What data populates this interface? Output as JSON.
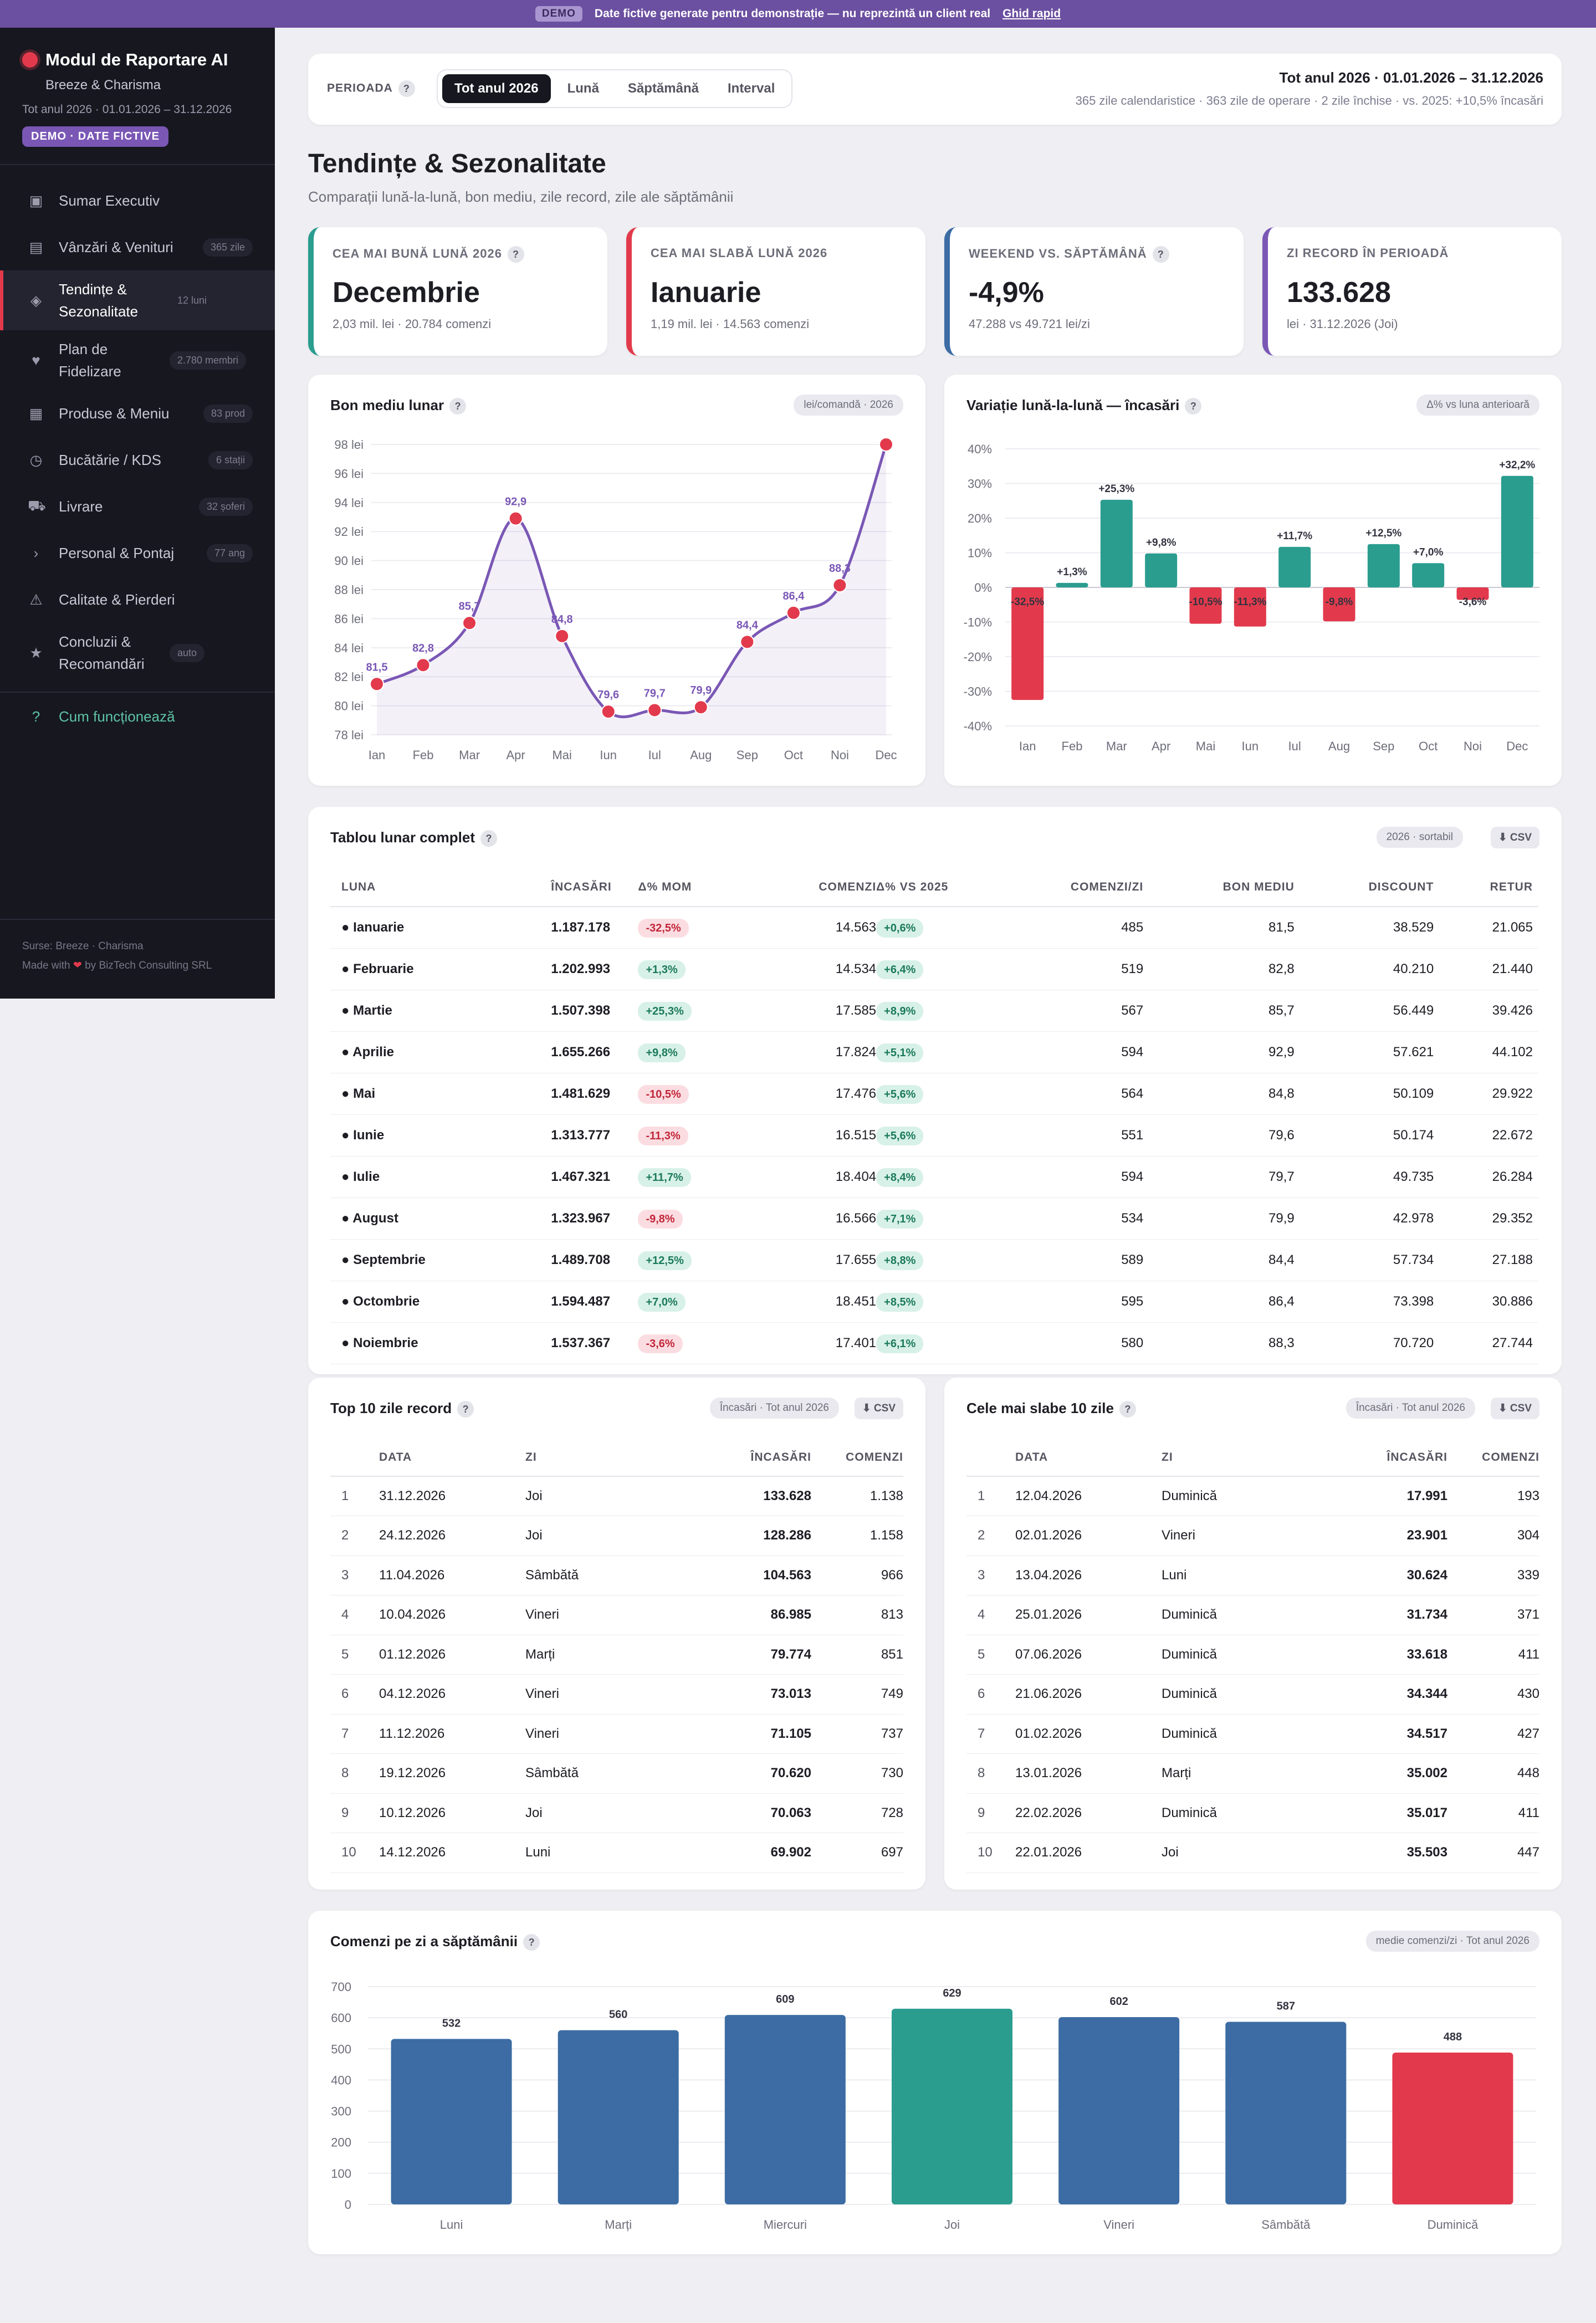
{
  "banner": {
    "tag": "DEMO",
    "text": "Date fictive generate pentru demonstrație — nu reprezintă un client real",
    "link": "Ghid rapid"
  },
  "sidebar": {
    "title": "Modul de Raportare AI",
    "client": "Breeze & Charisma",
    "period": "Tot anul 2026 · 01.01.2026 – 31.12.2026",
    "demo_badge": "DEMO · DATE FICTIVE",
    "items": [
      {
        "icon": "▣",
        "label": "Sumar Executiv",
        "badge": ""
      },
      {
        "icon": "▤",
        "label": "Vânzări & Venituri",
        "badge": "365 zile"
      },
      {
        "icon": "◈",
        "label": "Tendințe & Sezonalitate",
        "badge": "12 luni"
      },
      {
        "icon": "♥",
        "label": "Plan de Fidelizare",
        "badge": "2.780 membri"
      },
      {
        "icon": "▦",
        "label": "Produse & Meniu",
        "badge": "83 prod"
      },
      {
        "icon": "◷",
        "label": "Bucătărie / KDS",
        "badge": "6 stații"
      },
      {
        "icon": "⛟",
        "label": "Livrare",
        "badge": "32 șoferi"
      },
      {
        "icon": "›",
        "label": "Personal & Pontaj",
        "badge": "77 ang"
      },
      {
        "icon": "⚠",
        "label": "Calitate & Pierderi",
        "badge": ""
      },
      {
        "icon": "★",
        "label": "Concluzii & Recomandări",
        "badge": "auto"
      }
    ],
    "help": {
      "icon": "?",
      "label": "Cum funcționează"
    },
    "footer_sources": "Surse: Breeze · Charisma",
    "footer_made_pre": "Made with",
    "footer_made_post": "by BizTech Consulting SRL"
  },
  "period": {
    "label": "PERIOADA",
    "tabs": [
      "Tot anul 2026",
      "Lună",
      "Săptămână",
      "Interval"
    ],
    "summary": "Tot anul 2026 · 01.01.2026 – 31.12.2026",
    "detail": "365 zile calendaristice · 363 zile de operare · 2 zile închise · vs. 2025: +10,5% încasări"
  },
  "page": {
    "title": "Tendințe & Sezonalitate",
    "subtitle": "Comparații lună-la-lună, bon mediu, zile record, zile ale săptămânii"
  },
  "kpis": [
    {
      "label": "CEA MAI BUNĂ LUNĂ 2026",
      "value": "Decembrie",
      "sub": "2,03 mil. lei · 20.784 comenzi",
      "color": "#2a9d8f",
      "help": true
    },
    {
      "label": "CEA MAI SLABĂ LUNĂ 2026",
      "value": "Ianuarie",
      "sub": "1,19 mil. lei · 14.563 comenzi",
      "color": "#e23a4c",
      "help": false
    },
    {
      "label": "WEEKEND VS. SĂPTĂMÂNĂ",
      "value": "-4,9%",
      "sub": "47.288 vs 49.721 lei/zi",
      "color": "#3c6ca3",
      "help": true
    },
    {
      "label": "ZI RECORD ÎN PERIOADĂ",
      "value": "133.628",
      "sub": "lei · 31.12.2026 (Joi)",
      "color": "#7a57b5",
      "help": false
    }
  ],
  "chart_data": [
    {
      "type": "line",
      "title": "Bon mediu lunar",
      "tag": "lei/comandă · 2026",
      "categories": [
        "Ian",
        "Feb",
        "Mar",
        "Apr",
        "Mai",
        "Iun",
        "Iul",
        "Aug",
        "Sep",
        "Oct",
        "Noi",
        "Dec"
      ],
      "values": [
        81.5,
        82.8,
        85.7,
        92.9,
        84.8,
        79.6,
        79.7,
        79.9,
        84.4,
        86.4,
        88.3,
        98.0
      ],
      "labels": [
        "81,5",
        "82,8",
        "85,7",
        "92,9",
        "84,8",
        "79,6",
        "79,7",
        "79,9",
        "84,4",
        "86,4",
        "88,3",
        ""
      ],
      "yticks": [
        "78 lei",
        "80 lei",
        "82 lei",
        "84 lei",
        "86 lei",
        "88 lei",
        "90 lei",
        "92 lei",
        "94 lei",
        "96 lei",
        "98 lei"
      ],
      "ylim": [
        78,
        98
      ],
      "color": "#7a57b5",
      "marker": "#e23a4c"
    },
    {
      "type": "bar",
      "title": "Variație lună-la-lună — încasări",
      "tag": "Δ% vs luna anterioară",
      "categories": [
        "Ian",
        "Feb",
        "Mar",
        "Apr",
        "Mai",
        "Iun",
        "Iul",
        "Aug",
        "Sep",
        "Oct",
        "Noi",
        "Dec"
      ],
      "values": [
        -32.5,
        1.3,
        25.3,
        9.8,
        -10.5,
        -11.3,
        11.7,
        -9.8,
        12.5,
        7.0,
        -3.6,
        32.2
      ],
      "labels": [
        "-32,5%",
        "+1,3%",
        "+25,3%",
        "+9,8%",
        "-10,5%",
        "-11,3%",
        "+11,7%",
        "-9,8%",
        "+12,5%",
        "+7,0%",
        "-3,6%",
        "+32,2%"
      ],
      "yticks": [
        "-40%",
        "-30%",
        "-20%",
        "-10%",
        "0%",
        "10%",
        "20%",
        "30%",
        "40%"
      ],
      "ylim": [
        -40,
        40
      ],
      "pos_color": "#2a9d8f",
      "neg_color": "#e23a4c"
    },
    {
      "type": "bar",
      "title": "Comenzi pe zi a săptămânii",
      "tag": "medie comenzi/zi · Tot anul 2026",
      "categories": [
        "Luni",
        "Marți",
        "Miercuri",
        "Joi",
        "Vineri",
        "Sâmbătă",
        "Duminică"
      ],
      "values": [
        532,
        560,
        609,
        629,
        602,
        587,
        488
      ],
      "yticks": [
        "0",
        "100",
        "200",
        "300",
        "400",
        "500",
        "600",
        "700"
      ],
      "ylim": [
        0,
        700
      ],
      "colors": [
        "#3c6ca3",
        "#3c6ca3",
        "#3c6ca3",
        "#2a9d8f",
        "#3c6ca3",
        "#3c6ca3",
        "#e23a4c"
      ]
    }
  ],
  "monthly": {
    "title": "Tablou lunar complet",
    "tag": "2026 · sortabil",
    "csv": "⬇ CSV",
    "headers": [
      "LUNA",
      "ÎNCASĂRI",
      "Δ% MOM",
      "COMENZI",
      "Δ% VS 2025",
      "COMENZI/ZI",
      "BON MEDIU",
      "DISCOUNT",
      "RETUR"
    ],
    "rows": [
      [
        "Ianuarie",
        "1.187.178",
        "-32,5%",
        "14.563",
        "+0,6%",
        "485",
        "81,5",
        "38.529",
        "21.065"
      ],
      [
        "Februarie",
        "1.202.993",
        "+1,3%",
        "14.534",
        "+6,4%",
        "519",
        "82,8",
        "40.210",
        "21.440"
      ],
      [
        "Martie",
        "1.507.398",
        "+25,3%",
        "17.585",
        "+8,9%",
        "567",
        "85,7",
        "56.449",
        "39.426"
      ],
      [
        "Aprilie",
        "1.655.266",
        "+9,8%",
        "17.824",
        "+5,1%",
        "594",
        "92,9",
        "57.621",
        "44.102"
      ],
      [
        "Mai",
        "1.481.629",
        "-10,5%",
        "17.476",
        "+5,6%",
        "564",
        "84,8",
        "50.109",
        "29.922"
      ],
      [
        "Iunie",
        "1.313.777",
        "-11,3%",
        "16.515",
        "+5,6%",
        "551",
        "79,6",
        "50.174",
        "22.672"
      ],
      [
        "Iulie",
        "1.467.321",
        "+11,7%",
        "18.404",
        "+8,4%",
        "594",
        "79,7",
        "49.735",
        "26.284"
      ],
      [
        "August",
        "1.323.967",
        "-9,8%",
        "16.566",
        "+7,1%",
        "534",
        "79,9",
        "42.978",
        "29.352"
      ],
      [
        "Septembrie",
        "1.489.708",
        "+12,5%",
        "17.655",
        "+8,8%",
        "589",
        "84,4",
        "57.734",
        "27.188"
      ],
      [
        "Octombrie",
        "1.594.487",
        "+7,0%",
        "18.451",
        "+8,5%",
        "595",
        "86,4",
        "73.398",
        "30.886"
      ],
      [
        "Noiembrie",
        "1.537.367",
        "-3,6%",
        "17.401",
        "+6,1%",
        "580",
        "88,3",
        "70.720",
        "27.744"
      ]
    ]
  },
  "top10": {
    "title": "Top 10 zile record",
    "tag": "Încasări · Tot anul 2026",
    "csv": "⬇ CSV",
    "headers": [
      "",
      "DATA",
      "ZI",
      "ÎNCASĂRI",
      "COMENZI"
    ],
    "rows": [
      [
        "1",
        "31.12.2026",
        "Joi",
        "133.628",
        "1.138"
      ],
      [
        "2",
        "24.12.2026",
        "Joi",
        "128.286",
        "1.158"
      ],
      [
        "3",
        "11.04.2026",
        "Sâmbătă",
        "104.563",
        "966"
      ],
      [
        "4",
        "10.04.2026",
        "Vineri",
        "86.985",
        "813"
      ],
      [
        "5",
        "01.12.2026",
        "Marți",
        "79.774",
        "851"
      ],
      [
        "6",
        "04.12.2026",
        "Vineri",
        "73.013",
        "749"
      ],
      [
        "7",
        "11.12.2026",
        "Vineri",
        "71.105",
        "737"
      ],
      [
        "8",
        "19.12.2026",
        "Sâmbătă",
        "70.620",
        "730"
      ],
      [
        "9",
        "10.12.2026",
        "Joi",
        "70.063",
        "728"
      ],
      [
        "10",
        "14.12.2026",
        "Luni",
        "69.902",
        "697"
      ]
    ]
  },
  "worst10": {
    "title": "Cele mai slabe 10 zile",
    "tag": "Încasări · Tot anul 2026",
    "csv": "⬇ CSV",
    "headers": [
      "",
      "DATA",
      "ZI",
      "ÎNCASĂRI",
      "COMENZI"
    ],
    "rows": [
      [
        "1",
        "12.04.2026",
        "Duminică",
        "17.991",
        "193"
      ],
      [
        "2",
        "02.01.2026",
        "Vineri",
        "23.901",
        "304"
      ],
      [
        "3",
        "13.04.2026",
        "Luni",
        "30.624",
        "339"
      ],
      [
        "4",
        "25.01.2026",
        "Duminică",
        "31.734",
        "371"
      ],
      [
        "5",
        "07.06.2026",
        "Duminică",
        "33.618",
        "411"
      ],
      [
        "6",
        "21.06.2026",
        "Duminică",
        "34.344",
        "430"
      ],
      [
        "7",
        "01.02.2026",
        "Duminică",
        "34.517",
        "427"
      ],
      [
        "8",
        "13.01.2026",
        "Marți",
        "35.002",
        "448"
      ],
      [
        "9",
        "22.02.2026",
        "Duminică",
        "35.017",
        "411"
      ],
      [
        "10",
        "22.01.2026",
        "Joi",
        "35.503",
        "447"
      ]
    ]
  }
}
